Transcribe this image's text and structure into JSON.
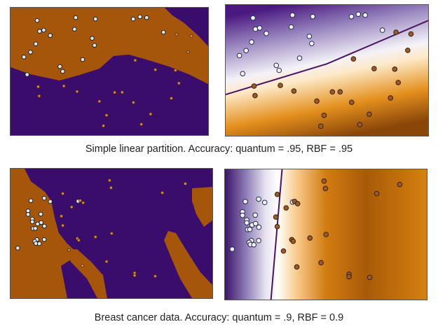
{
  "captions": {
    "top": "Simple linear partition.  Accuracy: quantum = .95, RBF = .95",
    "bottom": "Breast cancer data.  Accuracy: quantum = .9, RBF = 0.9"
  },
  "colors": {
    "purple": "#3a0c6c",
    "orange": "#a5560b",
    "light_point": "#dbe8f0",
    "dark_point": "#9a5a2a",
    "boundary_line": "#4a1460"
  },
  "chart_data": [
    {
      "type": "scatter",
      "panel": "quantum kernel classifier, simple linear partition",
      "xlim": [
        0,
        100
      ],
      "ylim": [
        0,
        100
      ],
      "grid": false,
      "series": [
        {
          "class": "light",
          "points": [
            [
              13.5,
              90.0
            ],
            [
              33.0,
              92.2
            ],
            [
              43.0,
              91.1
            ],
            [
              62.1,
              91.1
            ],
            [
              65.5,
              92.9
            ],
            [
              68.9,
              92.2
            ],
            [
              14.7,
              81.5
            ],
            [
              16.8,
              82.4
            ],
            [
              20.1,
              78.2
            ],
            [
              32.4,
              83.1
            ],
            [
              41.3,
              76.0
            ],
            [
              42.5,
              70.5
            ],
            [
              12.8,
              71.6
            ],
            [
              10.1,
              65.1
            ],
            [
              6.8,
              61.3
            ],
            [
              36.5,
              59.3
            ],
            [
              25.0,
              53.8
            ],
            [
              26.4,
              50.0
            ],
            [
              77.4,
              80.7
            ],
            [
              8.4,
              47.5
            ]
          ]
        },
        {
          "class": "dark",
          "points": [
            [
              84.1,
              79.1
            ],
            [
              91.5,
              77.8
            ],
            [
              89.9,
              65.3
            ],
            [
              63.1,
              58.7
            ],
            [
              73.3,
              51.3
            ],
            [
              83.5,
              50.9
            ],
            [
              85.2,
              40.7
            ],
            [
              14.0,
              38.0
            ],
            [
              14.5,
              30.7
            ],
            [
              27.0,
              38.5
            ],
            [
              33.7,
              34.2
            ],
            [
              52.7,
              33.5
            ],
            [
              56.5,
              33.6
            ],
            [
              45.0,
              26.5
            ],
            [
              62.2,
              25.6
            ],
            [
              81.4,
              28.9
            ],
            [
              48.6,
              15.6
            ],
            [
              70.9,
              16.5
            ],
            [
              47.0,
              7.3
            ],
            [
              66.2,
              8.5
            ]
          ]
        }
      ]
    },
    {
      "type": "scatter",
      "panel": "RBF classifier, simple linear partition",
      "xlim": [
        0,
        100
      ],
      "ylim": [
        0,
        100
      ],
      "grid": false,
      "decision_boundary": [
        [
          0,
          31.5
        ],
        [
          50,
          55
        ],
        [
          100,
          88
        ]
      ],
      "series_ref": 0
    },
    {
      "type": "scatter",
      "panel": "quantum kernel classifier, breast cancer data",
      "xlim": [
        0,
        100
      ],
      "ylim": [
        0,
        100
      ],
      "grid": false,
      "series": [
        {
          "class": "light",
          "points": [
            [
              10.1,
              75.3
            ],
            [
              16.7,
              77.2
            ],
            [
              19.7,
              74.6
            ],
            [
              33.5,
              74.9
            ],
            [
              8.7,
              67.4
            ],
            [
              8.7,
              64.7
            ],
            [
              15.0,
              64.9
            ],
            [
              10.8,
              61.1
            ],
            [
              10.8,
              59.0
            ],
            [
              13.4,
              57.3
            ],
            [
              15.2,
              58.4
            ],
            [
              16.8,
              55.6
            ],
            [
              11.2,
              53.8
            ],
            [
              12.3,
              53.9
            ],
            [
              16.7,
              45.3
            ],
            [
              13.1,
              45.3
            ],
            [
              12.0,
              43.9
            ],
            [
              12.6,
              42.3
            ],
            [
              14.3,
              42.1
            ],
            [
              3.6,
              38.7
            ]
          ]
        },
        {
          "class": "dark",
          "points": [
            [
              49.1,
              91.0
            ],
            [
              49.8,
              85.3
            ],
            [
              86.6,
              88.4
            ],
            [
              75.2,
              81.4
            ],
            [
              25.9,
              80.8
            ],
            [
              34.5,
              75.4
            ],
            [
              36.0,
              73.7
            ],
            [
              30.3,
              70.4
            ],
            [
              25.2,
              63.4
            ],
            [
              25.9,
              56.1
            ],
            [
              50.1,
              50.0
            ],
            [
              42.1,
              47.3
            ],
            [
              33.1,
              46.1
            ],
            [
              33.8,
              44.8
            ],
            [
              29.0,
              37.3
            ],
            [
              47.6,
              28.3
            ],
            [
              35.6,
              25.1
            ],
            [
              61.5,
              19.5
            ],
            [
              61.5,
              17.6
            ],
            [
              71.7,
              17.0
            ]
          ]
        }
      ]
    },
    {
      "type": "scatter",
      "panel": "RBF classifier, breast cancer data",
      "xlim": [
        0,
        100
      ],
      "ylim": [
        0,
        100
      ],
      "grid": false,
      "decision_boundary": [
        [
          28.3,
          100
        ],
        [
          22.8,
          0
        ]
      ],
      "series_ref": 2
    }
  ]
}
